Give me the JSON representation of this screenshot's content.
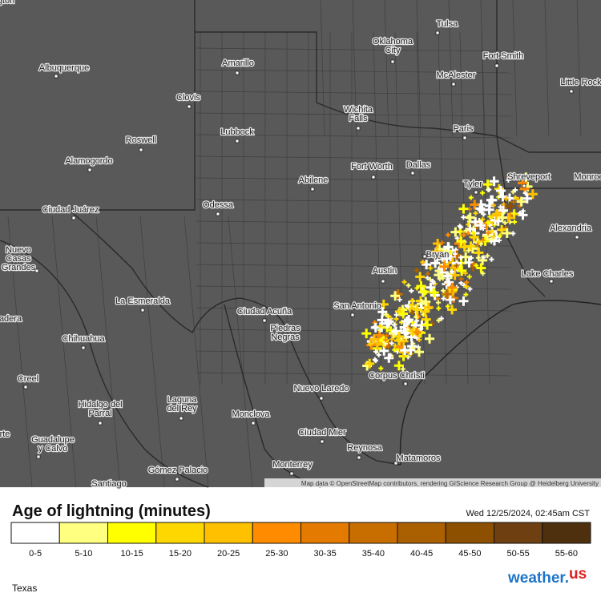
{
  "map": {
    "cities": [
      [
        "lington"
      ],
      [
        "Tulsa"
      ],
      [
        "Oklahoma",
        "City"
      ],
      [
        "Fort Smith"
      ],
      [
        "Albuquerque"
      ],
      [
        "Amarillo"
      ],
      [
        "McAlester"
      ],
      [
        "Little Rock"
      ],
      [
        "Clovis"
      ],
      [
        "Wichita",
        "Falls"
      ],
      [
        "Paris"
      ],
      [
        "Roswell"
      ],
      [
        "Lubbock"
      ],
      [
        "Alamogordo"
      ],
      [
        "Fort Worth"
      ],
      [
        "Dallas"
      ],
      [
        "Shreveport"
      ],
      [
        "Monroe"
      ],
      [
        "Abilene"
      ],
      [
        "Tyler"
      ],
      [
        "Ciudad Juárez"
      ],
      [
        "Odessa"
      ],
      [
        "Alexandria"
      ],
      [
        "Nuevo",
        "Casas",
        "Grandes"
      ],
      [
        "Bryan"
      ],
      [
        "Austin"
      ],
      [
        "Lake Charles"
      ],
      [
        "La Esmeralda"
      ],
      [
        "Ciudad Acuña"
      ],
      [
        "San Antonio"
      ],
      [
        "Piedras",
        "Negras"
      ],
      [
        "Chihuahua"
      ],
      [
        "adera"
      ],
      [
        "Creel"
      ],
      [
        "Corpus Christi"
      ],
      [
        "Nuevo Laredo"
      ],
      [
        "Hidalgo del",
        "Parral"
      ],
      [
        "Laguna",
        "del Rey"
      ],
      [
        "Monclova"
      ],
      [
        "Ciudad Mier"
      ],
      [
        "Reynosa"
      ],
      [
        "Guadalupe",
        "y Calvo"
      ],
      [
        "Matamoros"
      ],
      [
        "rte"
      ],
      [
        "Gómez Palacio"
      ],
      [
        "Monterrey"
      ],
      [
        "Santiago"
      ]
    ],
    "attribution": "Map data © OpenStreetMap contributors, rendering GIScience Research Group @ Heidelberg University"
  },
  "legend": {
    "title": "Age of lightning (minutes)",
    "timestamp": "Wed 12/25/2024, 02:45am CST",
    "bins": [
      {
        "label": "0-5",
        "color": "#ffffff"
      },
      {
        "label": "5-10",
        "color": "#ffff80"
      },
      {
        "label": "10-15",
        "color": "#ffff00"
      },
      {
        "label": "15-20",
        "color": "#ffd700"
      },
      {
        "label": "20-25",
        "color": "#ffc000"
      },
      {
        "label": "25-30",
        "color": "#ff8c00"
      },
      {
        "label": "30-35",
        "color": "#e47a00"
      },
      {
        "label": "35-40",
        "color": "#c86e00"
      },
      {
        "label": "40-45",
        "color": "#aa5f00"
      },
      {
        "label": "45-50",
        "color": "#8c5000"
      },
      {
        "label": "50-55",
        "color": "#6e3f10"
      },
      {
        "label": "55-60",
        "color": "#4f300e"
      }
    ]
  },
  "footer": {
    "region": "Texas",
    "logo": "weather.",
    "logo_suffix": "us"
  }
}
